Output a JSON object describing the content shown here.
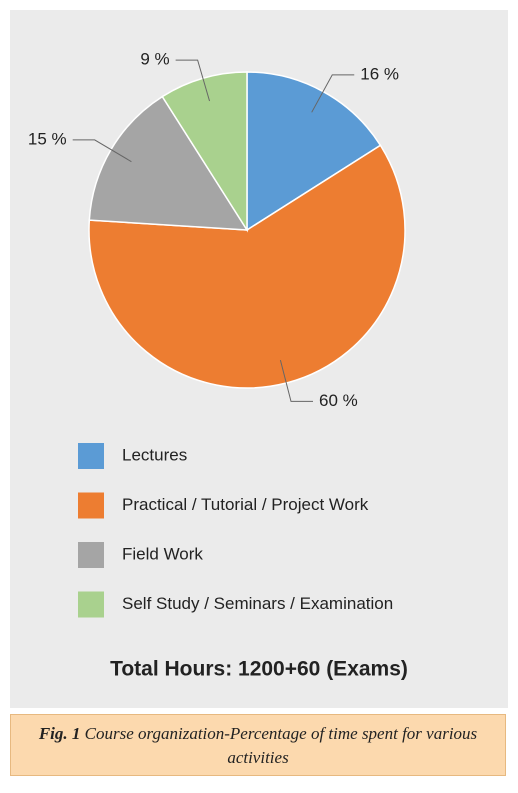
{
  "chart_data": {
    "type": "pie",
    "categories": [
      "Lectures",
      "Practical / Tutorial  / Project Work",
      "Field Work",
      "Self Study / Seminars / Examination"
    ],
    "values": [
      16,
      60,
      15,
      9
    ],
    "value_labels": [
      "16 %",
      "60 %",
      "15 %",
      "9 %"
    ],
    "colors": [
      "#5b9bd5",
      "#ed7d31",
      "#a5a5a5",
      "#a9d18e"
    ],
    "note": "Total Hours: 1200+60 (Exams)"
  },
  "caption": {
    "label": "Fig. 1",
    "text": "Course organization-Percentage of time spent for various activities"
  }
}
